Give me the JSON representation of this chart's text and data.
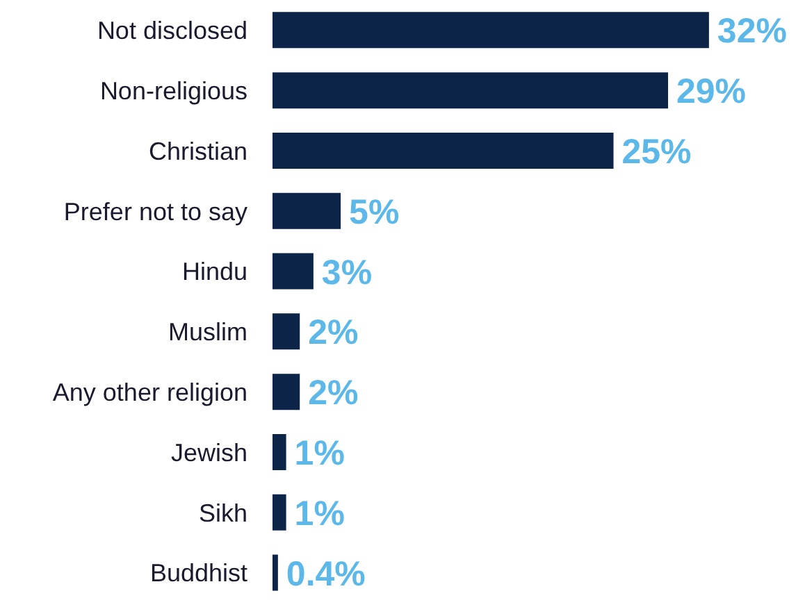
{
  "chart_data": {
    "type": "bar",
    "orientation": "horizontal",
    "categories": [
      "Not disclosed",
      "Non-religious",
      "Christian",
      "Prefer not to say",
      "Hindu",
      "Muslim",
      "Any other religion",
      "Jewish",
      "Sikh",
      "Buddhist"
    ],
    "values": [
      32,
      29,
      25,
      5,
      3,
      2,
      2,
      1,
      1,
      0.4
    ],
    "value_labels": [
      "32%",
      "29%",
      "25%",
      "5%",
      "3%",
      "2%",
      "2%",
      "1%",
      "1%",
      "0.4%"
    ],
    "color": "#0b2447",
    "tick_labels": "y"
  }
}
